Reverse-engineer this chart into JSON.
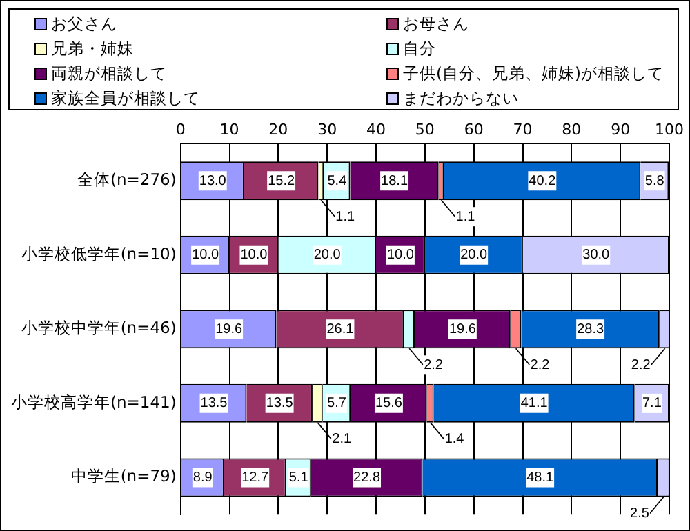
{
  "chart_data": {
    "type": "bar",
    "orientation": "horizontal",
    "stacked": true,
    "categories": [
      "全体(n=276)",
      "小学校低学年(n=10)",
      "小学校中学年(n=46)",
      "小学校高学年(n=141)",
      "中学生(n=79)"
    ],
    "series": [
      {
        "name": "お父さん",
        "color": "#9999ff",
        "values": [
          13.0,
          10.0,
          19.6,
          13.5,
          8.9
        ],
        "value_labels": [
          "13.0",
          "10.0",
          "19.6",
          "13.5",
          "8.9"
        ]
      },
      {
        "name": "お母さん",
        "color": "#993366",
        "values": [
          15.2,
          10.0,
          26.1,
          13.5,
          12.7
        ],
        "value_labels": [
          "15.2",
          "10.0",
          "26.1",
          "13.5",
          "12.7"
        ]
      },
      {
        "name": "兄弟・姉妹",
        "color": "#ffffcc",
        "values": [
          1.1,
          0,
          0,
          2.1,
          0
        ],
        "value_labels": [
          "1.1",
          null,
          null,
          "2.1",
          null
        ]
      },
      {
        "name": "自分",
        "color": "#ccffff",
        "values": [
          5.4,
          20.0,
          2.2,
          5.7,
          5.1
        ],
        "value_labels": [
          "5.4",
          "20.0",
          "2.2",
          "5.7",
          "5.1"
        ]
      },
      {
        "name": "両親が相談して",
        "color": "#660066",
        "values": [
          18.1,
          10.0,
          19.6,
          15.6,
          22.8
        ],
        "value_labels": [
          "18.1",
          "10.0",
          "19.6",
          "15.6",
          "22.8"
        ]
      },
      {
        "name": "子供(自分、兄弟、姉妹)が相談して",
        "color": "#ff8080",
        "values": [
          1.1,
          0,
          2.2,
          1.4,
          0
        ],
        "value_labels": [
          "1.1",
          null,
          "2.2",
          "1.4",
          null
        ]
      },
      {
        "name": "家族全員が相談して",
        "color": "#0066cc",
        "values": [
          40.2,
          20.0,
          28.3,
          41.1,
          48.1
        ],
        "value_labels": [
          "40.2",
          "20.0",
          "28.3",
          "41.1",
          "48.1"
        ]
      },
      {
        "name": "まだわからない",
        "color": "#ccccff",
        "values": [
          5.8,
          30.0,
          2.2,
          7.1,
          2.5
        ],
        "value_labels": [
          "5.8",
          "30.0",
          "2.2",
          "7.1",
          "2.5"
        ]
      }
    ],
    "xlim": [
      0,
      100
    ],
    "xticks": [
      0,
      10,
      20,
      30,
      40,
      50,
      60,
      70,
      80,
      90,
      100
    ],
    "grid": "x",
    "legend": "top"
  }
}
